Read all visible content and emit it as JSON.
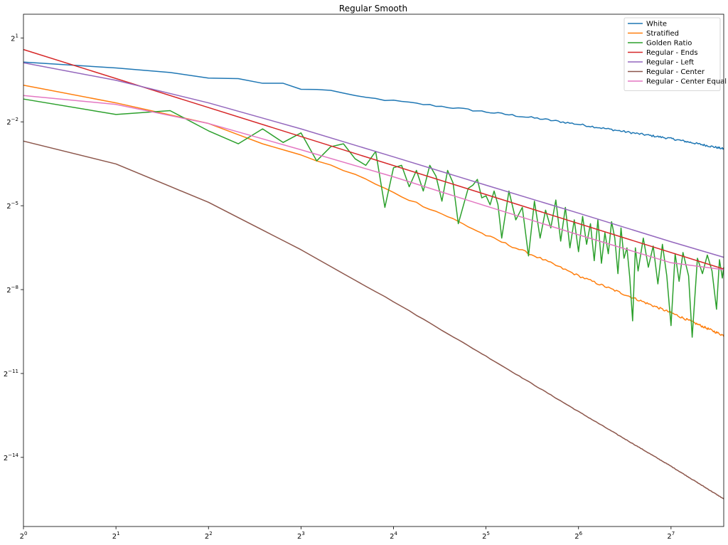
{
  "chart_data": {
    "type": "line",
    "title": "Regular Smooth",
    "xlabel": "",
    "ylabel": "",
    "x_scale": "log2",
    "y_scale": "log2",
    "xlim": [
      1,
      190
    ],
    "ylim": [
      1.1e-05,
      3.6
    ],
    "x_ticks": [
      {
        "value": 1,
        "base": "2",
        "exp": "0"
      },
      {
        "value": 2,
        "base": "2",
        "exp": "1"
      },
      {
        "value": 4,
        "base": "2",
        "exp": "2"
      },
      {
        "value": 8,
        "base": "2",
        "exp": "3"
      },
      {
        "value": 16,
        "base": "2",
        "exp": "4"
      },
      {
        "value": 32,
        "base": "2",
        "exp": "5"
      },
      {
        "value": 64,
        "base": "2",
        "exp": "6"
      },
      {
        "value": 128,
        "base": "2",
        "exp": "7"
      }
    ],
    "y_ticks": [
      {
        "value": 2,
        "base": "2",
        "exp": "1"
      },
      {
        "value": 0.25,
        "base": "2",
        "exp": "−2"
      },
      {
        "value": 0.03125,
        "base": "2",
        "exp": "−5"
      },
      {
        "value": 0.00390625,
        "base": "2",
        "exp": "−8"
      },
      {
        "value": 0.00048828125,
        "base": "2",
        "exp": "−11"
      },
      {
        "value": 6.103515625e-05,
        "base": "2",
        "exp": "−14"
      }
    ],
    "grid": false,
    "legend_position": "top-right",
    "series": [
      {
        "name": "White",
        "color": "#1f77b4",
        "noise": 0.035,
        "points": [
          [
            1,
            1.1
          ],
          [
            2,
            0.95
          ],
          [
            3,
            0.85
          ],
          [
            4,
            0.74
          ],
          [
            5,
            0.73
          ],
          [
            6,
            0.65
          ],
          [
            7,
            0.65
          ],
          [
            8,
            0.56
          ],
          [
            10,
            0.55
          ],
          [
            12,
            0.47
          ],
          [
            16,
            0.42
          ],
          [
            24,
            0.36
          ],
          [
            32,
            0.32
          ],
          [
            48,
            0.27
          ],
          [
            64,
            0.235
          ],
          [
            96,
            0.19
          ],
          [
            128,
            0.165
          ],
          [
            190,
            0.128
          ]
        ]
      },
      {
        "name": "Stratified",
        "color": "#ff7f0e",
        "noise": 0.04,
        "points": [
          [
            1,
            0.62
          ],
          [
            2,
            0.4
          ],
          [
            4,
            0.24
          ],
          [
            6,
            0.145
          ],
          [
            8,
            0.11
          ],
          [
            12,
            0.068
          ],
          [
            16,
            0.043
          ],
          [
            24,
            0.024
          ],
          [
            32,
            0.015
          ],
          [
            48,
            0.0085
          ],
          [
            64,
            0.0055
          ],
          [
            96,
            0.0032
          ],
          [
            128,
            0.0022
          ],
          [
            190,
            0.00125
          ]
        ]
      },
      {
        "name": "Golden Ratio",
        "color": "#2ca02c",
        "noise": 0,
        "points": [
          [
            1,
            0.44
          ],
          [
            2,
            0.3
          ],
          [
            3,
            0.33
          ],
          [
            4,
            0.2
          ],
          [
            5,
            0.145
          ],
          [
            6,
            0.21
          ],
          [
            7,
            0.15
          ],
          [
            8,
            0.19
          ],
          [
            9,
            0.095
          ],
          [
            10,
            0.135
          ],
          [
            11,
            0.145
          ],
          [
            12,
            0.1
          ],
          [
            13,
            0.085
          ],
          [
            14,
            0.12
          ],
          [
            15,
            0.03
          ],
          [
            16,
            0.08
          ],
          [
            17,
            0.085
          ],
          [
            18,
            0.05
          ],
          [
            19,
            0.075
          ],
          [
            20,
            0.045
          ],
          [
            21,
            0.085
          ],
          [
            22,
            0.065
          ],
          [
            23,
            0.035
          ],
          [
            24,
            0.075
          ],
          [
            25,
            0.055
          ],
          [
            26,
            0.02
          ],
          [
            28,
            0.048
          ],
          [
            29,
            0.052
          ],
          [
            30,
            0.06
          ],
          [
            31,
            0.038
          ],
          [
            32,
            0.04
          ],
          [
            33,
            0.032
          ],
          [
            34,
            0.045
          ],
          [
            35,
            0.032
          ],
          [
            36,
            0.014
          ],
          [
            38,
            0.045
          ],
          [
            40,
            0.022
          ],
          [
            42,
            0.03
          ],
          [
            44,
            0.009
          ],
          [
            46,
            0.035
          ],
          [
            48,
            0.014
          ],
          [
            50,
            0.028
          ],
          [
            52,
            0.018
          ],
          [
            54,
            0.036
          ],
          [
            56,
            0.013
          ],
          [
            58,
            0.03
          ],
          [
            60,
            0.011
          ],
          [
            62,
            0.022
          ],
          [
            64,
            0.01
          ],
          [
            66,
            0.024
          ],
          [
            68,
            0.012
          ],
          [
            70,
            0.02
          ],
          [
            72,
            0.008
          ],
          [
            74,
            0.022
          ],
          [
            76,
            0.0075
          ],
          [
            78,
            0.016
          ],
          [
            80,
            0.0095
          ],
          [
            82,
            0.021
          ],
          [
            84,
            0.014
          ],
          [
            86,
            0.0058
          ],
          [
            88,
            0.018
          ],
          [
            90,
            0.0085
          ],
          [
            92,
            0.011
          ],
          [
            94,
            0.0052
          ],
          [
            96,
            0.0018
          ],
          [
            98,
            0.011
          ],
          [
            100,
            0.0062
          ],
          [
            104,
            0.014
          ],
          [
            108,
            0.0068
          ],
          [
            112,
            0.0115
          ],
          [
            116,
            0.0045
          ],
          [
            120,
            0.012
          ],
          [
            124,
            0.0055
          ],
          [
            128,
            0.0016
          ],
          [
            132,
            0.0095
          ],
          [
            136,
            0.0048
          ],
          [
            140,
            0.0098
          ],
          [
            146,
            0.0055
          ],
          [
            150,
            0.0012
          ],
          [
            156,
            0.0085
          ],
          [
            162,
            0.0058
          ],
          [
            168,
            0.0092
          ],
          [
            174,
            0.0062
          ],
          [
            180,
            0.0024
          ],
          [
            184,
            0.0082
          ],
          [
            188,
            0.0052
          ],
          [
            190,
            0.0068
          ]
        ]
      },
      {
        "name": "Regular - Ends",
        "color": "#d62728",
        "noise": 0,
        "points": [
          [
            1,
            1.5
          ],
          [
            190,
            0.0065
          ]
        ]
      },
      {
        "name": "Regular - Left",
        "color": "#9467bd",
        "noise": 0,
        "points": [
          [
            1,
            1.08
          ],
          [
            2,
            0.7
          ],
          [
            4,
            0.4
          ],
          [
            8,
            0.21
          ],
          [
            16,
            0.105
          ],
          [
            32,
            0.052
          ],
          [
            64,
            0.026
          ],
          [
            128,
            0.0128
          ],
          [
            190,
            0.0087
          ]
        ]
      },
      {
        "name": "Regular - Center",
        "color": "#8c564b",
        "noise": 0.01,
        "points": [
          [
            1,
            0.155
          ],
          [
            2,
            0.088
          ],
          [
            4,
            0.034
          ],
          [
            8,
            0.0105
          ],
          [
            16,
            0.0029
          ],
          [
            32,
            0.00075
          ],
          [
            64,
            0.00019
          ],
          [
            128,
            4.9e-05
          ],
          [
            190,
            2.18e-05
          ]
        ]
      },
      {
        "name": "Regular - Center Equal",
        "color": "#e377c2",
        "noise": 0,
        "points": [
          [
            1,
            0.48
          ],
          [
            2,
            0.385
          ],
          [
            4,
            0.24
          ],
          [
            8,
            0.125
          ],
          [
            16,
            0.064
          ],
          [
            32,
            0.031
          ],
          [
            64,
            0.0152
          ],
          [
            128,
            0.0076
          ],
          [
            190,
            0.0064
          ]
        ]
      }
    ]
  }
}
